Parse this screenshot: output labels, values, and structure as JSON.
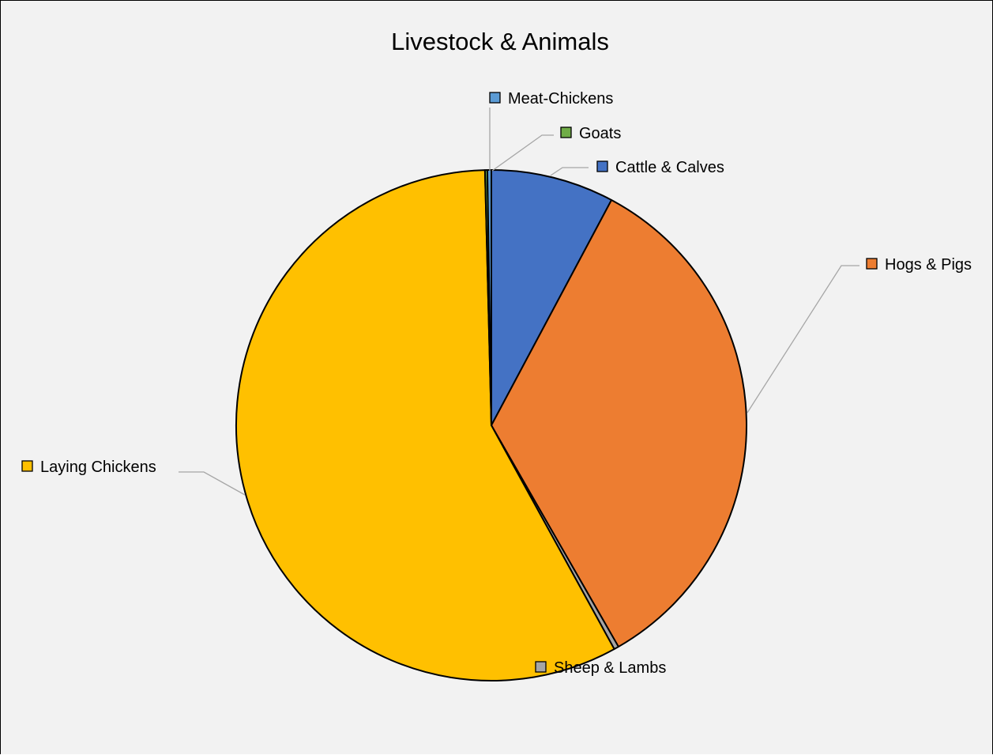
{
  "chart_data": {
    "type": "pie",
    "title": "Livestock & Animals",
    "start_angle_deg": 0,
    "direction": "clockwise",
    "slices": [
      {
        "label": "Cattle & Calves",
        "value": 7.8,
        "color": "#4472c4"
      },
      {
        "label": "Hogs & Pigs",
        "value": 33.9,
        "color": "#ed7d31"
      },
      {
        "label": "Sheep & Lambs",
        "value": 0.3,
        "color": "#a5a5a5"
      },
      {
        "label": "Laying Chickens",
        "value": 57.6,
        "color": "#ffc000"
      },
      {
        "label": "Goats",
        "value": 0.15,
        "color": "#70ad47"
      },
      {
        "label": "Meat-Chickens",
        "value": 0.25,
        "color": "#5b9bd5"
      }
    ],
    "legend": "data labels with callout lines"
  }
}
